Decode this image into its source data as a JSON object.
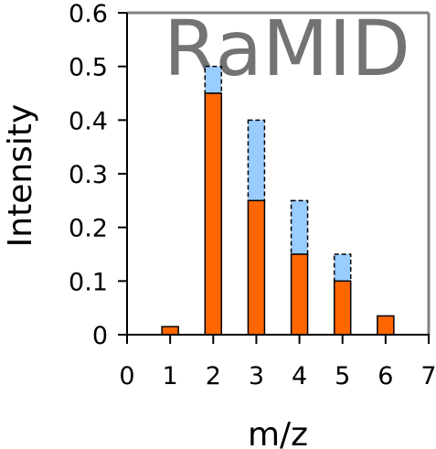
{
  "watermark": "RaMID",
  "chart_data": {
    "type": "bar",
    "xlabel": "m/z",
    "ylabel": "Intensity",
    "xlim": [
      0,
      7
    ],
    "ylim": [
      0,
      0.6
    ],
    "xticks": [
      "0",
      "1",
      "2",
      "3",
      "4",
      "5",
      "6",
      "7"
    ],
    "yticks": [
      "0",
      "0.1",
      "0.2",
      "0.3",
      "0.4",
      "0.5",
      "0.6"
    ],
    "grid": false,
    "colors": {
      "observed": "#ff6600",
      "extension": "#99ccff",
      "watermark": "#737373",
      "frame": "#808080"
    },
    "series": [
      {
        "role": "observed",
        "x": [
          1,
          2,
          3,
          4,
          5,
          6
        ],
        "values": [
          0.015,
          0.45,
          0.25,
          0.15,
          0.1,
          0.035
        ]
      },
      {
        "role": "extension",
        "x": [
          2,
          3,
          4,
          5
        ],
        "values": [
          0.5,
          0.4,
          0.25,
          0.15
        ]
      }
    ]
  }
}
